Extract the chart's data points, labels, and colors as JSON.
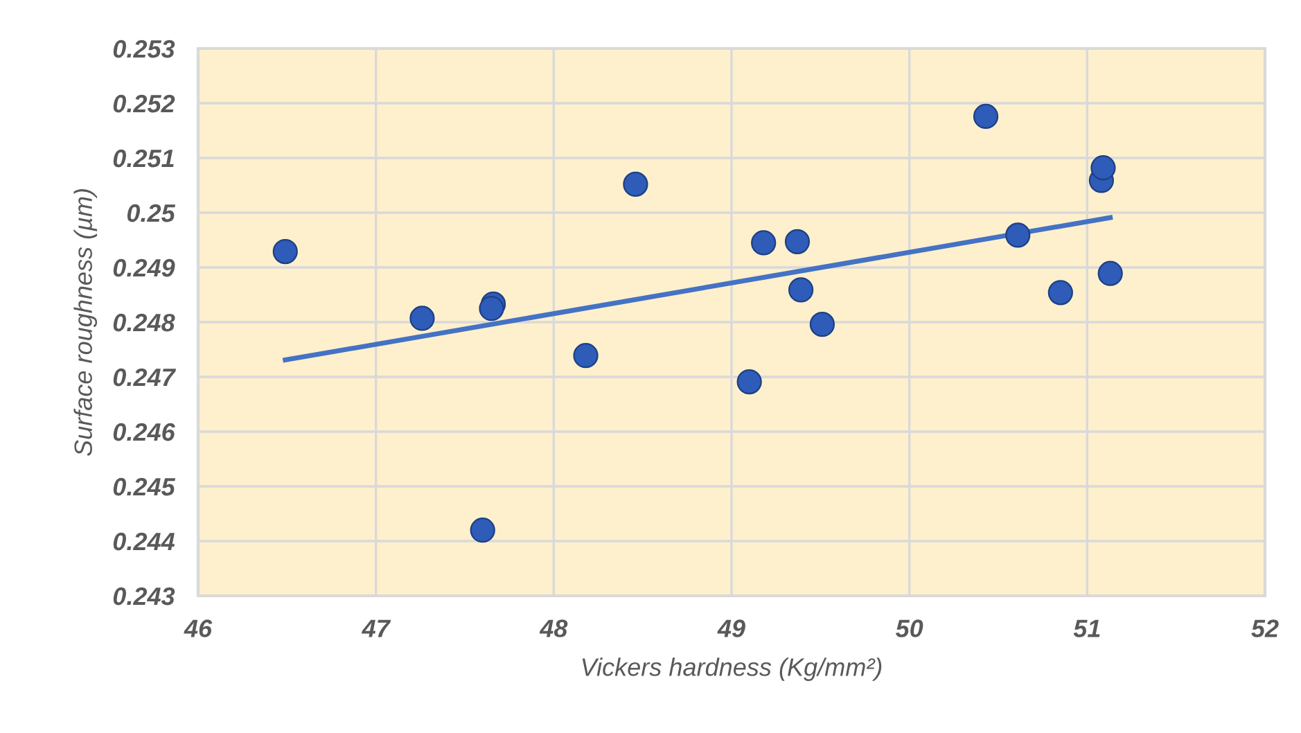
{
  "chart_data": {
    "type": "scatter",
    "xlabel": "Vickers hardness (Kg/mm²)",
    "ylabel": "Surface roughness (µm)",
    "series": [
      {
        "marker": "circle",
        "color": "#2e5cb8",
        "x": [
          46.49,
          47.26,
          47.66,
          47.65,
          47.6,
          48.18,
          48.46,
          49.1,
          49.18,
          49.37,
          49.39,
          49.51,
          50.43,
          50.61,
          50.85,
          51.08,
          51.09,
          51.13
        ],
        "values": [
          0.24929,
          0.24807,
          0.24833,
          0.24825,
          0.2442,
          0.24739,
          0.25052,
          0.24691,
          0.24945,
          0.24947,
          0.24859,
          0.24796,
          0.25176,
          0.24959,
          0.24854,
          0.25059,
          0.25082,
          0.24889
        ]
      },
      {
        "type": "line",
        "marker": "none",
        "color": "#4472c4",
        "x": [
          46.49,
          51.13
        ],
        "values": [
          0.24731,
          0.24991
        ]
      }
    ],
    "xlim": [
      46,
      52
    ],
    "xticks": [
      46,
      47,
      48,
      49,
      50,
      51,
      52
    ],
    "ylim": [
      0.243,
      0.253
    ],
    "yticks": [
      0.243,
      0.244,
      0.245,
      0.246,
      0.247,
      0.248,
      0.249,
      0.25,
      0.251,
      0.252,
      0.253
    ],
    "grid": true,
    "line_style": "solid"
  }
}
